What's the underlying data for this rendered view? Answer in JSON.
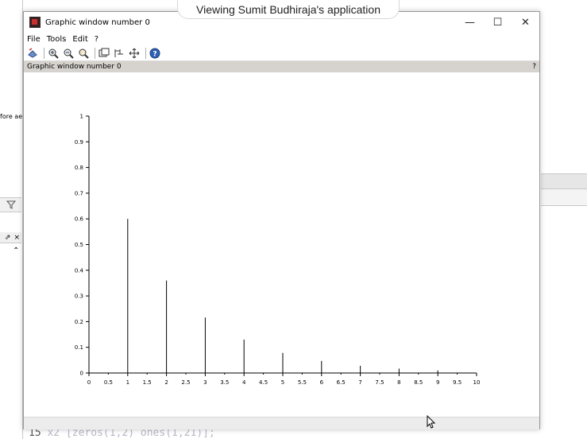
{
  "banner": {
    "text": "Viewing Sumit Budhiraja's application"
  },
  "background": {
    "clipped_text": "fore ae",
    "panel_buttons": [
      "⇗",
      "×"
    ],
    "bottom_code_left": "15",
    "bottom_code_right": "x2 [zeros(1,2) ones(1,21)];"
  },
  "window": {
    "title": "Graphic window number 0",
    "controls": [
      "—",
      "☐",
      "✕"
    ],
    "menu": [
      "File",
      "Tools",
      "Edit",
      "?"
    ],
    "toolbar_icons": [
      "rotate-icon",
      "zoom-in-icon",
      "zoom-out-icon",
      "zoom-restore-icon",
      "select-icon",
      "datatip-icon",
      "pan-icon",
      "help-icon"
    ],
    "status_text": "Graphic window number 0",
    "status_help": "?"
  },
  "chart_data": {
    "type": "stem",
    "x_ticks": [
      "0",
      "0.5",
      "1",
      "1.5",
      "2",
      "2.5",
      "3",
      "3.5",
      "4",
      "4.5",
      "5",
      "5.5",
      "6",
      "6.5",
      "7",
      "7.5",
      "8",
      "8.5",
      "9",
      "9.5",
      "10"
    ],
    "y_ticks": [
      "0",
      "0.1",
      "0.2",
      "0.3",
      "0.4",
      "0.5",
      "0.6",
      "0.7",
      "0.8",
      "0.9",
      "1"
    ],
    "xlim": [
      0,
      10
    ],
    "ylim": [
      0,
      1
    ],
    "x": [
      1,
      2,
      3,
      4,
      5,
      6,
      7,
      8,
      9
    ],
    "values": [
      0.6,
      0.36,
      0.216,
      0.13,
      0.078,
      0.047,
      0.028,
      0.017,
      0.01
    ],
    "stem_color": "#000000",
    "grid": false
  }
}
